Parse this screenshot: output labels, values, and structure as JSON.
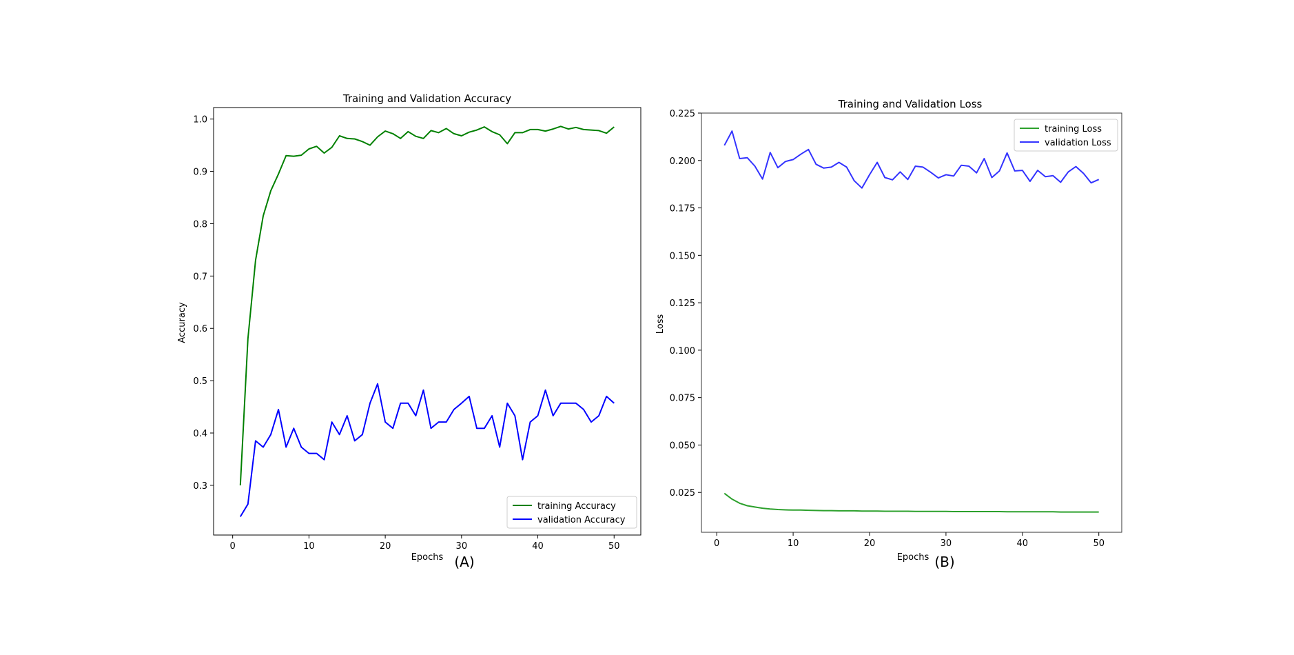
{
  "chart_data": [
    {
      "type": "line",
      "title": "Training and Validation Accuracy",
      "xlabel": "Epochs",
      "ylabel": "Accuracy",
      "panel_label": "(A)",
      "xlim": [
        -2.5,
        53.5
      ],
      "ylim": [
        0.205,
        1.022
      ],
      "xticks": [
        0,
        10,
        20,
        30,
        40,
        50
      ],
      "yticks": [
        0.3,
        0.4,
        0.5,
        0.6,
        0.7,
        0.8,
        0.9,
        1.0
      ],
      "ytick_labels": [
        "0.3",
        "0.4",
        "0.5",
        "0.6",
        "0.7",
        "0.8",
        "0.9",
        "1.0"
      ],
      "grid": false,
      "legend_position": "lower-right",
      "x": [
        1,
        2,
        3,
        4,
        5,
        6,
        7,
        8,
        9,
        10,
        11,
        12,
        13,
        14,
        15,
        16,
        17,
        18,
        19,
        20,
        21,
        22,
        23,
        24,
        25,
        26,
        27,
        28,
        29,
        30,
        31,
        32,
        33,
        34,
        35,
        36,
        37,
        38,
        39,
        40,
        41,
        42,
        43,
        44,
        45,
        46,
        47,
        48,
        49,
        50
      ],
      "series": [
        {
          "name": "training Accuracy",
          "color": "#008000",
          "values": [
            0.3,
            0.58,
            0.73,
            0.815,
            0.863,
            0.895,
            0.93,
            0.929,
            0.931,
            0.943,
            0.948,
            0.935,
            0.946,
            0.968,
            0.963,
            0.962,
            0.957,
            0.95,
            0.966,
            0.977,
            0.972,
            0.963,
            0.976,
            0.967,
            0.963,
            0.978,
            0.974,
            0.982,
            0.972,
            0.968,
            0.975,
            0.979,
            0.985,
            0.976,
            0.97,
            0.953,
            0.974,
            0.974,
            0.98,
            0.98,
            0.977,
            0.981,
            0.986,
            0.981,
            0.984,
            0.98,
            0.979,
            0.978,
            0.973,
            0.985
          ]
        },
        {
          "name": "validation Accuracy",
          "color": "#0000ff",
          "values": [
            0.24,
            0.264,
            0.385,
            0.373,
            0.397,
            0.445,
            0.373,
            0.409,
            0.373,
            0.361,
            0.361,
            0.349,
            0.421,
            0.397,
            0.433,
            0.385,
            0.397,
            0.457,
            0.494,
            0.421,
            0.409,
            0.457,
            0.457,
            0.433,
            0.482,
            0.409,
            0.421,
            0.421,
            0.445,
            0.457,
            0.47,
            0.409,
            0.409,
            0.433,
            0.373,
            0.457,
            0.433,
            0.349,
            0.421,
            0.433,
            0.482,
            0.433,
            0.457,
            0.457,
            0.457,
            0.445,
            0.421,
            0.433,
            0.47,
            0.457
          ]
        }
      ]
    },
    {
      "type": "line",
      "title": "Training and Validation Loss",
      "xlabel": "Epochs",
      "ylabel": "Loss",
      "panel_label": "(B)",
      "xlim": [
        -2,
        53
      ],
      "ylim": [
        0.004,
        0.225
      ],
      "xticks": [
        0,
        10,
        20,
        30,
        40,
        50
      ],
      "yticks": [
        0.025,
        0.05,
        0.075,
        0.1,
        0.125,
        0.15,
        0.175,
        0.2,
        0.225
      ],
      "ytick_labels": [
        "0.025",
        "0.050",
        "0.075",
        "0.100",
        "0.125",
        "0.150",
        "0.175",
        "0.200",
        "0.225"
      ],
      "grid": false,
      "legend_position": "upper-right",
      "x": [
        1,
        2,
        3,
        4,
        5,
        6,
        7,
        8,
        9,
        10,
        11,
        12,
        13,
        14,
        15,
        16,
        17,
        18,
        19,
        20,
        21,
        22,
        23,
        24,
        25,
        26,
        27,
        28,
        29,
        30,
        31,
        32,
        33,
        34,
        35,
        36,
        37,
        38,
        39,
        40,
        41,
        42,
        43,
        44,
        45,
        46,
        47,
        48,
        49,
        50
      ],
      "series": [
        {
          "name": "training Loss",
          "color": "#2ca02c",
          "values": [
            0.0245,
            0.0215,
            0.0193,
            0.018,
            0.0173,
            0.0167,
            0.0163,
            0.016,
            0.0158,
            0.0157,
            0.0157,
            0.0156,
            0.0155,
            0.0154,
            0.0154,
            0.0153,
            0.0153,
            0.0153,
            0.0152,
            0.0152,
            0.0152,
            0.0151,
            0.0151,
            0.0151,
            0.0151,
            0.015,
            0.015,
            0.015,
            0.015,
            0.015,
            0.0149,
            0.0149,
            0.0149,
            0.0149,
            0.0149,
            0.0149,
            0.0149,
            0.0148,
            0.0148,
            0.0148,
            0.0148,
            0.0148,
            0.0148,
            0.0148,
            0.0147,
            0.0147,
            0.0147,
            0.0147,
            0.0147,
            0.0147
          ]
        },
        {
          "name": "validation Loss",
          "color": "#3333ff",
          "values": [
            0.208,
            0.2155,
            0.201,
            0.2015,
            0.197,
            0.1902,
            0.2042,
            0.1962,
            0.1995,
            0.2005,
            0.2033,
            0.2058,
            0.198,
            0.196,
            0.1965,
            0.199,
            0.1965,
            0.1893,
            0.1855,
            0.1925,
            0.199,
            0.191,
            0.1898,
            0.194,
            0.19,
            0.197,
            0.1965,
            0.1938,
            0.1908,
            0.1925,
            0.1918,
            0.1975,
            0.197,
            0.1935,
            0.201,
            0.191,
            0.1945,
            0.204,
            0.1945,
            0.1948,
            0.189,
            0.1948,
            0.1915,
            0.192,
            0.1885,
            0.194,
            0.1968,
            0.1932,
            0.1882,
            0.19
          ]
        }
      ]
    }
  ]
}
